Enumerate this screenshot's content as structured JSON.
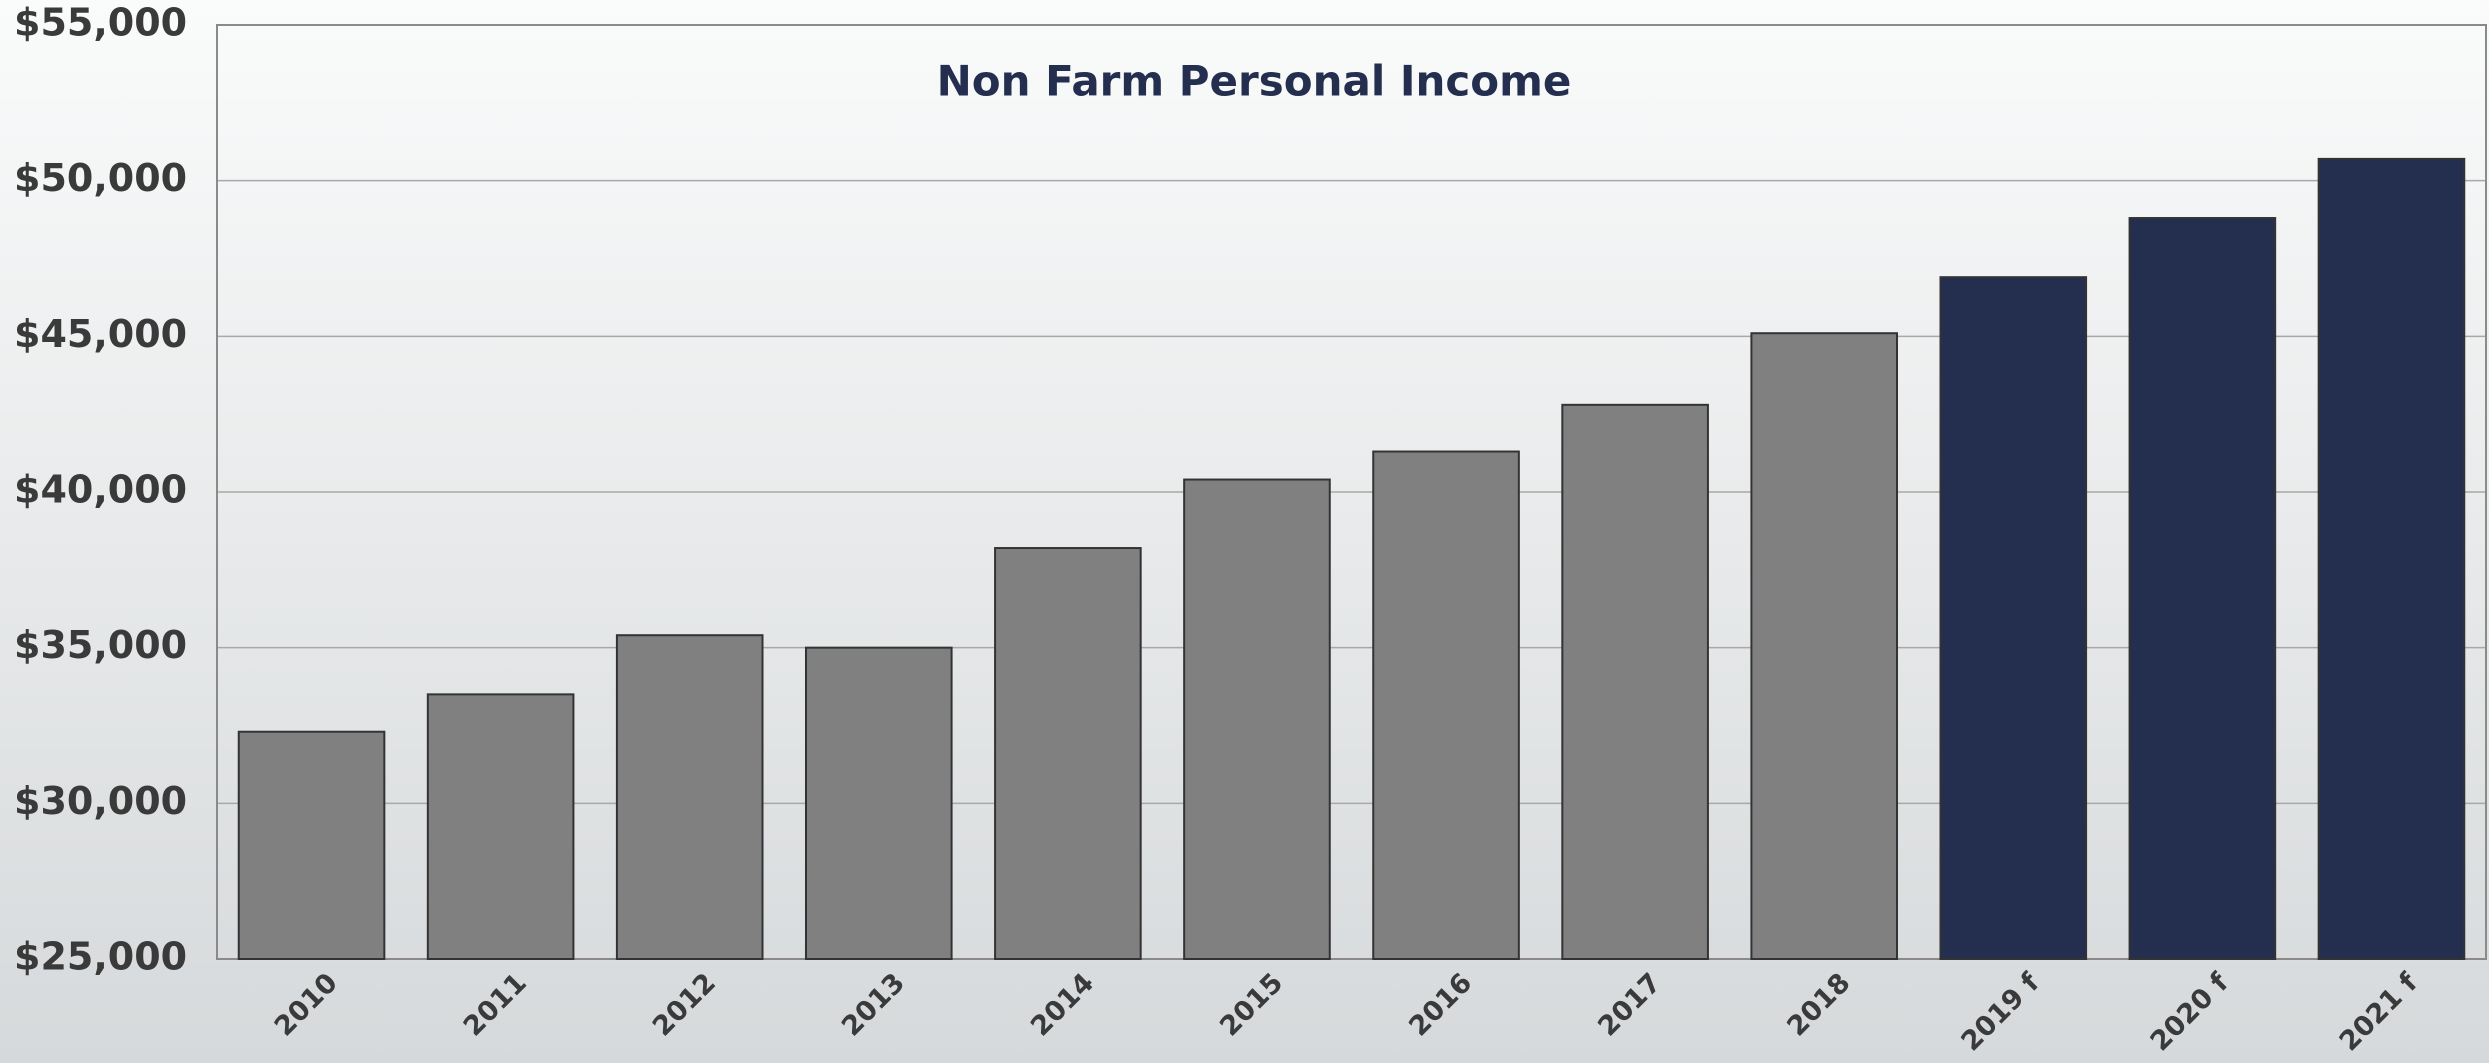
{
  "chart_data": {
    "type": "bar",
    "title": "Non Farm Personal Income",
    "categories": [
      "2010",
      "2011",
      "2012",
      "2013",
      "2014",
      "2015",
      "2016",
      "2017",
      "2018",
      "2019 f",
      "2020 f",
      "2021 f"
    ],
    "values": [
      32300,
      33500,
      35400,
      35000,
      38200,
      40400,
      41300,
      42800,
      45100,
      46900,
      48800,
      50700
    ],
    "colors": [
      "#808080",
      "#808080",
      "#808080",
      "#808080",
      "#808080",
      "#808080",
      "#808080",
      "#808080",
      "#808080",
      "#242e4e",
      "#242e4e",
      "#242e4e"
    ],
    "ylim": [
      25000,
      55000
    ],
    "yticks": [
      {
        "value": 25000,
        "label": "$25,000"
      },
      {
        "value": 30000,
        "label": "$30,000"
      },
      {
        "value": 35000,
        "label": "$35,000"
      },
      {
        "value": 40000,
        "label": "$40,000"
      },
      {
        "value": 45000,
        "label": "$45,000"
      },
      {
        "value": 50000,
        "label": "$50,000"
      },
      {
        "value": 55000,
        "label": "$55,000"
      }
    ],
    "grid": true
  }
}
